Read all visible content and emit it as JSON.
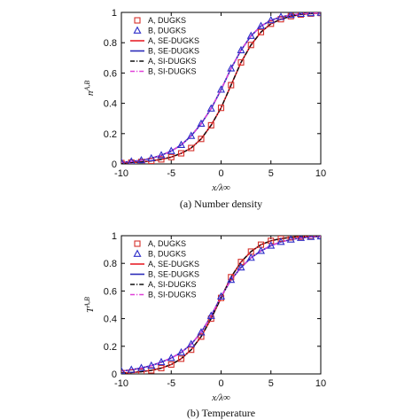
{
  "chart_data": [
    {
      "type": "line",
      "caption": "(a) Number density",
      "xlabel": "x/λ∞",
      "ylabel": "n^{A,B}",
      "xlim": [
        -10,
        10
      ],
      "ylim": [
        0,
        1
      ],
      "xticks": [
        -10,
        -5,
        0,
        5,
        10
      ],
      "xtick_labels": [
        "-10",
        "-5",
        "0",
        "5",
        "10"
      ],
      "yticks": [
        0,
        0.2,
        0.4,
        0.6,
        0.8,
        1
      ],
      "ytick_labels": [
        "0",
        "0.2",
        "0.4",
        "0.6",
        "0.8",
        "1"
      ],
      "grid": false,
      "legend": "top-left",
      "series": [
        {
          "name": "A, DUGKS",
          "style": "marker-square",
          "color": "#d6302a",
          "x": [
            -10,
            -9,
            -8,
            -7,
            -6,
            -5,
            -4,
            -3,
            -2,
            -1,
            0,
            1,
            2,
            3,
            4,
            5,
            6,
            7,
            8,
            9,
            10
          ],
          "y": [
            0.006,
            0.009,
            0.013,
            0.02,
            0.03,
            0.045,
            0.07,
            0.105,
            0.165,
            0.255,
            0.37,
            0.52,
            0.67,
            0.785,
            0.87,
            0.925,
            0.955,
            0.975,
            0.986,
            0.992,
            0.996
          ]
        },
        {
          "name": "B, DUGKS",
          "style": "marker-triangle",
          "color": "#2e2ec9",
          "x": [
            -10,
            -9,
            -8,
            -7,
            -6,
            -5,
            -4,
            -3,
            -2,
            -1,
            0,
            1,
            2,
            3,
            4,
            5,
            6,
            7,
            8,
            9,
            10
          ],
          "y": [
            0.01,
            0.016,
            0.024,
            0.037,
            0.057,
            0.085,
            0.125,
            0.185,
            0.265,
            0.365,
            0.49,
            0.63,
            0.75,
            0.845,
            0.91,
            0.948,
            0.97,
            0.983,
            0.99,
            0.995,
            0.998
          ]
        },
        {
          "name": "A, SE-DUGKS",
          "style": "solid",
          "color": "#e8222a",
          "x": [
            -10,
            -9,
            -8,
            -7,
            -6,
            -5,
            -4,
            -3,
            -2,
            -1,
            0,
            1,
            2,
            3,
            4,
            5,
            6,
            7,
            8,
            9,
            10
          ],
          "y": [
            0.006,
            0.009,
            0.013,
            0.02,
            0.03,
            0.045,
            0.07,
            0.105,
            0.165,
            0.255,
            0.37,
            0.52,
            0.67,
            0.785,
            0.87,
            0.925,
            0.955,
            0.975,
            0.986,
            0.992,
            0.996
          ]
        },
        {
          "name": "B, SE-DUGKS",
          "style": "solid",
          "color": "#2a2ab8",
          "x": [
            -10,
            -9,
            -8,
            -7,
            -6,
            -5,
            -4,
            -3,
            -2,
            -1,
            0,
            1,
            2,
            3,
            4,
            5,
            6,
            7,
            8,
            9,
            10
          ],
          "y": [
            0.01,
            0.016,
            0.024,
            0.037,
            0.057,
            0.085,
            0.125,
            0.185,
            0.265,
            0.365,
            0.49,
            0.63,
            0.75,
            0.845,
            0.91,
            0.948,
            0.97,
            0.983,
            0.99,
            0.995,
            0.998
          ]
        },
        {
          "name": "A, SI-DUGKS",
          "style": "dash-dot",
          "color": "#111111",
          "x": [
            -10,
            -9,
            -8,
            -7,
            -6,
            -5,
            -4,
            -3,
            -2,
            -1,
            0,
            1,
            2,
            3,
            4,
            5,
            6,
            7,
            8,
            9,
            10
          ],
          "y": [
            0.006,
            0.009,
            0.013,
            0.02,
            0.03,
            0.045,
            0.07,
            0.105,
            0.165,
            0.255,
            0.37,
            0.52,
            0.67,
            0.785,
            0.87,
            0.925,
            0.955,
            0.975,
            0.986,
            0.992,
            0.996
          ]
        },
        {
          "name": "B, SI-DUGKS",
          "style": "dash-dot",
          "color": "#e040d8",
          "x": [
            -10,
            -9,
            -8,
            -7,
            -6,
            -5,
            -4,
            -3,
            -2,
            -1,
            0,
            1,
            2,
            3,
            4,
            5,
            6,
            7,
            8,
            9,
            10
          ],
          "y": [
            0.01,
            0.016,
            0.024,
            0.037,
            0.057,
            0.085,
            0.125,
            0.185,
            0.265,
            0.365,
            0.49,
            0.63,
            0.75,
            0.845,
            0.91,
            0.948,
            0.97,
            0.983,
            0.99,
            0.995,
            0.998
          ]
        }
      ]
    },
    {
      "type": "line",
      "caption": "(b) Temperature",
      "xlabel": "x/λ∞",
      "ylabel": "T^{A,B}",
      "xlim": [
        -10,
        10
      ],
      "ylim": [
        0,
        1
      ],
      "xticks": [
        -10,
        -5,
        0,
        5,
        10
      ],
      "xtick_labels": [
        "-10",
        "-5",
        "0",
        "5",
        "10"
      ],
      "yticks": [
        0,
        0.2,
        0.4,
        0.6,
        0.8,
        1
      ],
      "ytick_labels": [
        "0",
        "0.2",
        "0.4",
        "0.6",
        "0.8",
        "1"
      ],
      "grid": false,
      "legend": "top-left",
      "series": [
        {
          "name": "A, DUGKS",
          "style": "marker-square",
          "color": "#d6302a",
          "x": [
            -10,
            -9,
            -8,
            -7,
            -6,
            -5,
            -4,
            -3,
            -2,
            -1,
            0,
            1,
            2,
            3,
            4,
            5,
            6,
            7,
            8,
            9,
            10
          ],
          "y": [
            0.006,
            0.01,
            0.016,
            0.026,
            0.042,
            0.068,
            0.11,
            0.175,
            0.27,
            0.4,
            0.55,
            0.7,
            0.81,
            0.885,
            0.935,
            0.963,
            0.979,
            0.988,
            0.993,
            0.996,
            0.998
          ]
        },
        {
          "name": "B, DUGKS",
          "style": "marker-triangle",
          "color": "#2e2ec9",
          "x": [
            -10,
            -9,
            -8,
            -7,
            -6,
            -5,
            -4,
            -3,
            -2,
            -1,
            0,
            1,
            2,
            3,
            4,
            5,
            6,
            7,
            8,
            9,
            10
          ],
          "y": [
            0.02,
            0.03,
            0.043,
            0.06,
            0.085,
            0.115,
            0.155,
            0.215,
            0.3,
            0.42,
            0.56,
            0.68,
            0.77,
            0.84,
            0.89,
            0.928,
            0.955,
            0.972,
            0.984,
            0.991,
            0.995
          ]
        },
        {
          "name": "A, SE-DUGKS",
          "style": "solid",
          "color": "#e8222a",
          "x": [
            -10,
            -9,
            -8,
            -7,
            -6,
            -5,
            -4,
            -3,
            -2,
            -1,
            0,
            1,
            2,
            3,
            4,
            5,
            6,
            7,
            8,
            9,
            10
          ],
          "y": [
            0.006,
            0.01,
            0.016,
            0.026,
            0.042,
            0.068,
            0.11,
            0.175,
            0.27,
            0.4,
            0.55,
            0.7,
            0.81,
            0.885,
            0.935,
            0.963,
            0.979,
            0.988,
            0.993,
            0.996,
            0.998
          ]
        },
        {
          "name": "B, SE-DUGKS",
          "style": "solid",
          "color": "#2a2ab8",
          "x": [
            -10,
            -9,
            -8,
            -7,
            -6,
            -5,
            -4,
            -3,
            -2,
            -1,
            0,
            1,
            2,
            3,
            4,
            5,
            6,
            7,
            8,
            9,
            10
          ],
          "y": [
            0.02,
            0.03,
            0.043,
            0.06,
            0.085,
            0.115,
            0.155,
            0.215,
            0.3,
            0.42,
            0.56,
            0.68,
            0.77,
            0.84,
            0.89,
            0.928,
            0.955,
            0.972,
            0.984,
            0.991,
            0.995
          ]
        },
        {
          "name": "A, SI-DUGKS",
          "style": "dash-dot",
          "color": "#111111",
          "x": [
            -10,
            -9,
            -8,
            -7,
            -6,
            -5,
            -4,
            -3,
            -2,
            -1,
            0,
            1,
            2,
            3,
            4,
            5,
            6,
            7,
            8,
            9,
            10
          ],
          "y": [
            0.006,
            0.01,
            0.016,
            0.026,
            0.042,
            0.068,
            0.11,
            0.175,
            0.27,
            0.4,
            0.55,
            0.7,
            0.81,
            0.885,
            0.935,
            0.963,
            0.979,
            0.988,
            0.993,
            0.996,
            0.998
          ]
        },
        {
          "name": "B, SI-DUGKS",
          "style": "dash-dot",
          "color": "#e040d8",
          "x": [
            -10,
            -9,
            -8,
            -7,
            -6,
            -5,
            -4,
            -3,
            -2,
            -1,
            0,
            1,
            2,
            3,
            4,
            5,
            6,
            7,
            8,
            9,
            10
          ],
          "y": [
            0.02,
            0.03,
            0.043,
            0.06,
            0.085,
            0.115,
            0.155,
            0.215,
            0.3,
            0.42,
            0.56,
            0.68,
            0.77,
            0.84,
            0.89,
            0.928,
            0.955,
            0.972,
            0.984,
            0.991,
            0.995
          ]
        }
      ]
    }
  ]
}
